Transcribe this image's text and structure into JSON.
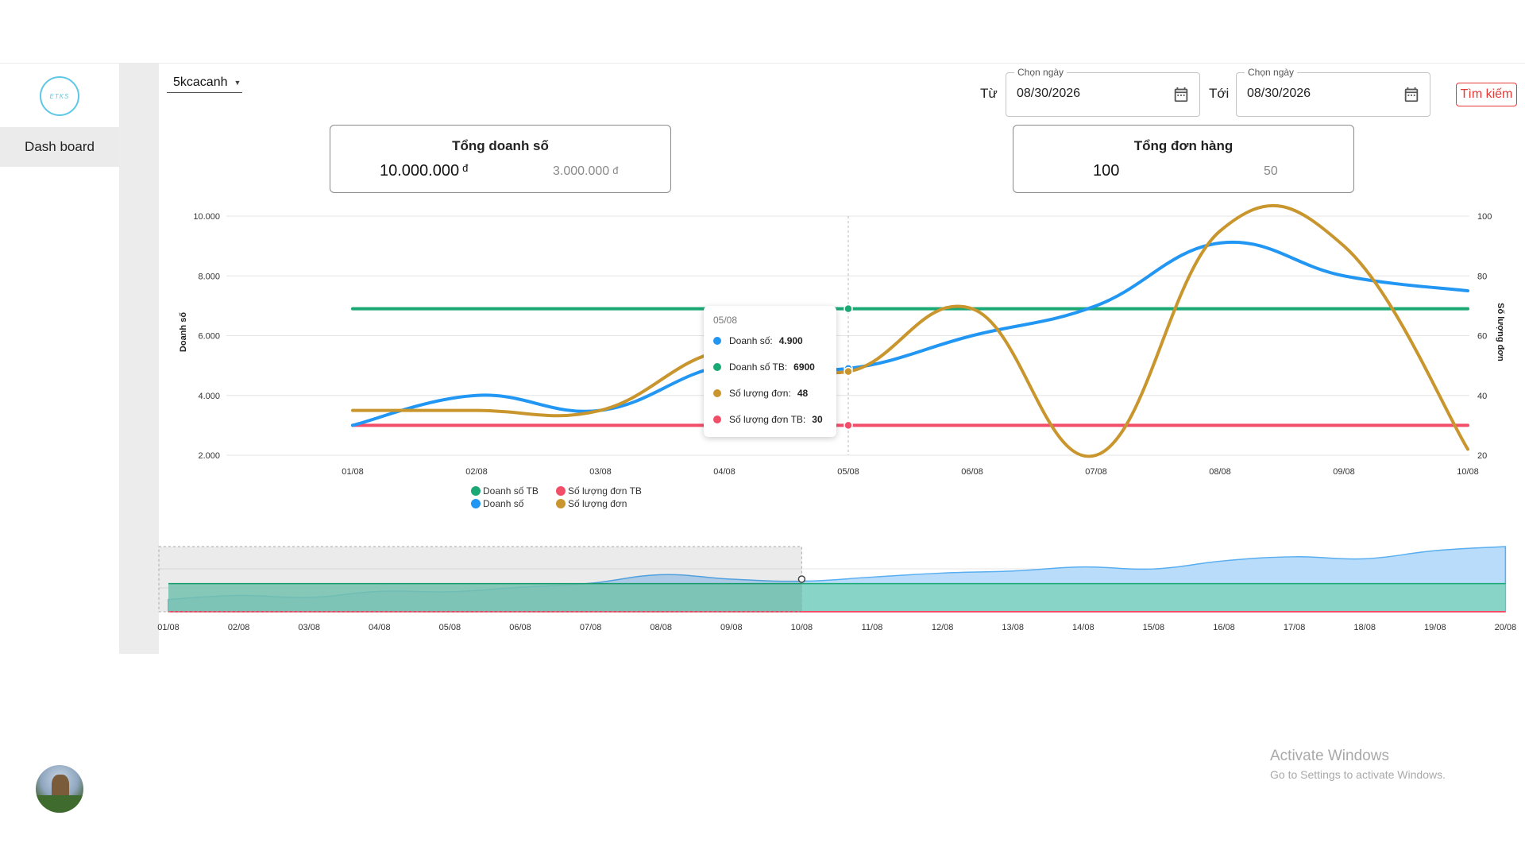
{
  "sidebar": {
    "logo_text": "ETKS",
    "items": [
      {
        "label": "Dash board"
      }
    ]
  },
  "filters": {
    "store": "5kcacanh",
    "from_label": "Từ",
    "to_label": "Tới",
    "from_field": {
      "legend": "Chọn ngày",
      "value": "08/30/2026"
    },
    "to_field": {
      "legend": "Chọn ngày",
      "value": "08/30/2026"
    },
    "search_label": "Tìm kiếm"
  },
  "cards": {
    "revenue": {
      "title": "Tổng doanh số",
      "value": "10.000.000",
      "unit": "đ",
      "compare": "3.000.000",
      "compare_unit": "đ"
    },
    "orders": {
      "title": "Tổng đơn hàng",
      "value": "100",
      "compare": "50"
    }
  },
  "tooltip": {
    "title": "05/08",
    "rows": [
      {
        "label": "Doanh số:",
        "value": "4.900",
        "color": "#2196f3"
      },
      {
        "label": "Doanh số TB:",
        "value": "6900",
        "color": "#1aa874"
      },
      {
        "label": "Số lượng đơn:",
        "value": "48",
        "color": "#c9962e"
      },
      {
        "label": "Số lượng đơn TB:",
        "value": "30",
        "color": "#f24e6a"
      }
    ]
  },
  "legend": [
    {
      "label": "Doanh số TB",
      "color": "#1aa874"
    },
    {
      "label": "Số lượng đơn TB",
      "color": "#f24e6a"
    },
    {
      "label": "Doanh số",
      "color": "#2196f3"
    },
    {
      "label": "Số lượng đơn",
      "color": "#c9962e"
    }
  ],
  "chart_data": {
    "type": "line",
    "categories": [
      "01/08",
      "02/08",
      "03/08",
      "04/08",
      "05/08",
      "06/08",
      "07/08",
      "08/08",
      "09/08",
      "10/08"
    ],
    "left_axis": {
      "label": "Doanh số",
      "ticks": [
        "2.000",
        "4.000",
        "6.000",
        "8.000",
        "10.000"
      ],
      "range": [
        2000,
        10000
      ]
    },
    "right_axis": {
      "label": "Số lượng đơn",
      "ticks": [
        "20",
        "40",
        "60",
        "80",
        "100"
      ],
      "range": [
        20,
        100
      ]
    },
    "series": [
      {
        "name": "Doanh số",
        "axis": "left",
        "color": "#2196f3",
        "values": [
          3000,
          4000,
          3500,
          5000,
          4900,
          6000,
          7000,
          9100,
          8000,
          7500
        ]
      },
      {
        "name": "Doanh số TB",
        "axis": "left",
        "color": "#1aa874",
        "values": [
          6900,
          6900,
          6900,
          6900,
          6900,
          6900,
          6900,
          6900,
          6900,
          6900
        ]
      },
      {
        "name": "Số lượng đơn",
        "axis": "right",
        "color": "#c9962e",
        "values": [
          35,
          35,
          35,
          55,
          48,
          69,
          20,
          95,
          90,
          22
        ]
      },
      {
        "name": "Số lượng đơn TB",
        "axis": "right",
        "color": "#f24e6a",
        "values": [
          30,
          30,
          30,
          30,
          30,
          30,
          30,
          30,
          30,
          30
        ]
      }
    ],
    "hover_index": 4,
    "grid": true,
    "legend_position": "bottom-left"
  },
  "navigator": {
    "categories": [
      "01/08",
      "02/08",
      "03/08",
      "04/08",
      "05/08",
      "06/08",
      "07/08",
      "08/08",
      "09/08",
      "10/08",
      "11/08",
      "12/08",
      "13/08",
      "14/08",
      "15/08",
      "16/08",
      "17/08",
      "18/08",
      "19/08",
      "20/08"
    ],
    "first_tick_display": "01/08",
    "revenue_values": [
      3000,
      4000,
      3500,
      5000,
      4900,
      6000,
      7000,
      9100,
      8000,
      7500,
      8500,
      9500,
      10000,
      11000,
      10500,
      12500,
      13500,
      13000,
      15000,
      16000
    ],
    "avg_value": 6900,
    "selected_range": [
      0,
      9
    ]
  },
  "watermark": {
    "line1": "Activate Windows",
    "line2": "Go to Settings to activate Windows."
  }
}
